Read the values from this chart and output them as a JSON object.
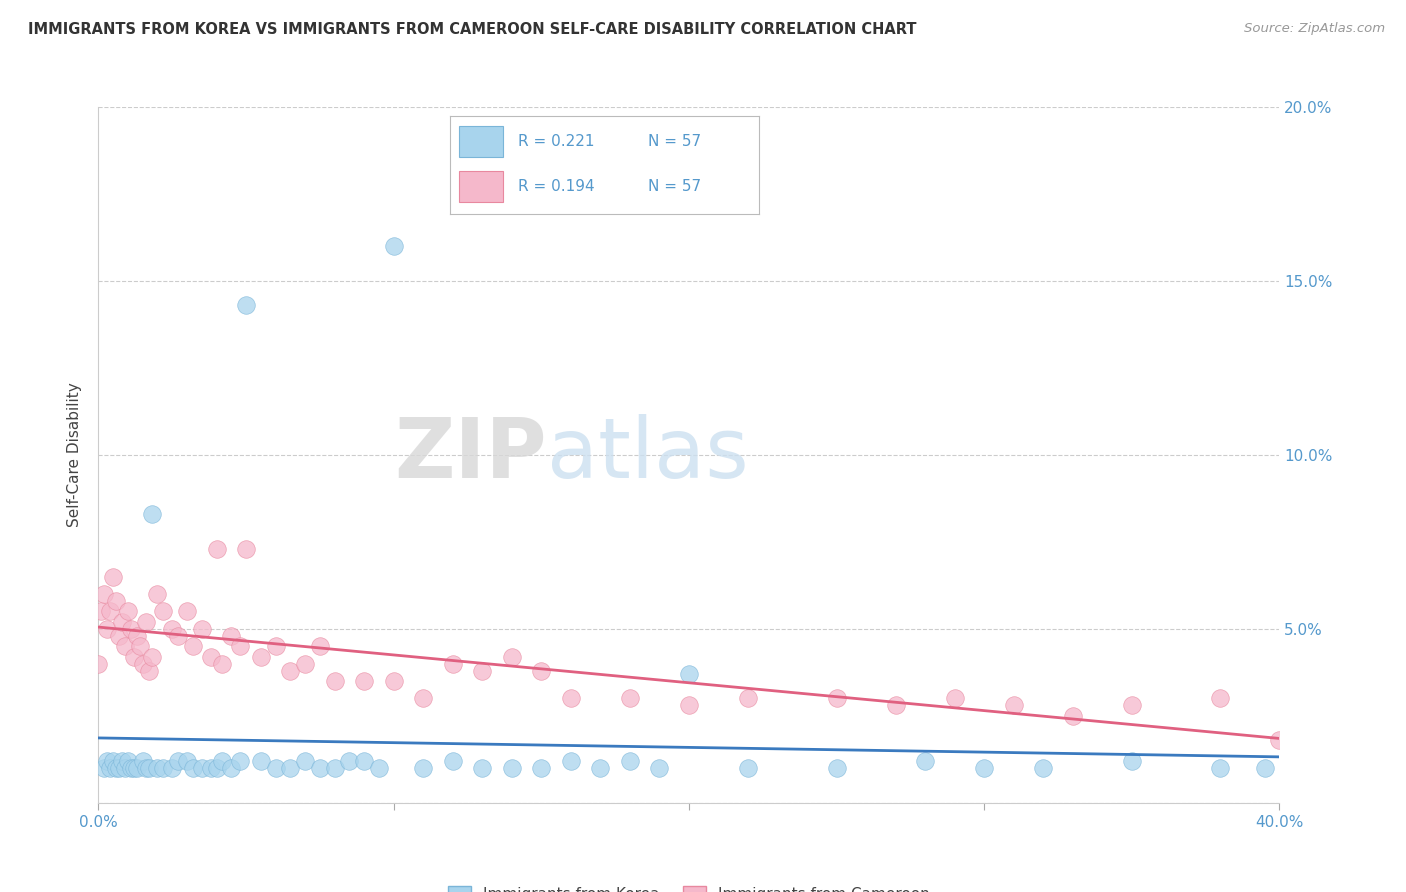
{
  "title": "IMMIGRANTS FROM KOREA VS IMMIGRANTS FROM CAMEROON SELF-CARE DISABILITY CORRELATION CHART",
  "source": "Source: ZipAtlas.com",
  "ylabel_label": "Self-Care Disability",
  "xlim": [
    0.0,
    0.4
  ],
  "ylim": [
    0.0,
    0.2
  ],
  "xticks": [
    0.0,
    0.1,
    0.2,
    0.3,
    0.4
  ],
  "yticks": [
    0.0,
    0.05,
    0.1,
    0.15,
    0.2
  ],
  "xticklabels": [
    "0.0%",
    "",
    "",
    "",
    "40.0%"
  ],
  "yticklabels": [
    "",
    "5.0%",
    "10.0%",
    "15.0%",
    "20.0%"
  ],
  "korea_color": "#a8d4ed",
  "cameroon_color": "#f5b8cb",
  "korea_edge_color": "#7ab5d8",
  "cameroon_edge_color": "#e8889f",
  "korea_line_color": "#3a7abf",
  "cameroon_line_color": "#e06080",
  "legend_R_korea": "0.221",
  "legend_N_korea": "57",
  "legend_R_cameroon": "0.194",
  "legend_N_cameroon": "57",
  "watermark_ZIP": "ZIP",
  "watermark_atlas": "atlas",
  "legend_label_korea": "Immigrants from Korea",
  "legend_label_cameroon": "Immigrants from Cameroon",
  "korea_x": [
    0.002,
    0.003,
    0.004,
    0.005,
    0.006,
    0.007,
    0.008,
    0.009,
    0.01,
    0.011,
    0.012,
    0.013,
    0.015,
    0.016,
    0.017,
    0.018,
    0.02,
    0.022,
    0.025,
    0.027,
    0.03,
    0.032,
    0.035,
    0.038,
    0.04,
    0.042,
    0.045,
    0.048,
    0.05,
    0.055,
    0.06,
    0.065,
    0.07,
    0.075,
    0.08,
    0.085,
    0.09,
    0.095,
    0.1,
    0.11,
    0.12,
    0.13,
    0.14,
    0.15,
    0.16,
    0.17,
    0.18,
    0.19,
    0.2,
    0.22,
    0.25,
    0.28,
    0.3,
    0.32,
    0.35,
    0.38,
    0.395
  ],
  "korea_y": [
    0.01,
    0.012,
    0.01,
    0.012,
    0.01,
    0.01,
    0.012,
    0.01,
    0.012,
    0.01,
    0.01,
    0.01,
    0.012,
    0.01,
    0.01,
    0.083,
    0.01,
    0.01,
    0.01,
    0.012,
    0.012,
    0.01,
    0.01,
    0.01,
    0.01,
    0.012,
    0.01,
    0.012,
    0.143,
    0.012,
    0.01,
    0.01,
    0.012,
    0.01,
    0.01,
    0.012,
    0.012,
    0.01,
    0.16,
    0.01,
    0.012,
    0.01,
    0.01,
    0.01,
    0.012,
    0.01,
    0.012,
    0.01,
    0.037,
    0.01,
    0.01,
    0.012,
    0.01,
    0.01,
    0.012,
    0.01,
    0.01
  ],
  "cameroon_x": [
    0.0,
    0.001,
    0.002,
    0.003,
    0.004,
    0.005,
    0.006,
    0.007,
    0.008,
    0.009,
    0.01,
    0.011,
    0.012,
    0.013,
    0.014,
    0.015,
    0.016,
    0.017,
    0.018,
    0.02,
    0.022,
    0.025,
    0.027,
    0.03,
    0.032,
    0.035,
    0.038,
    0.04,
    0.042,
    0.045,
    0.048,
    0.05,
    0.055,
    0.06,
    0.065,
    0.07,
    0.075,
    0.08,
    0.09,
    0.1,
    0.11,
    0.12,
    0.13,
    0.14,
    0.15,
    0.16,
    0.18,
    0.2,
    0.22,
    0.25,
    0.27,
    0.29,
    0.31,
    0.33,
    0.35,
    0.38,
    0.4
  ],
  "cameroon_y": [
    0.04,
    0.055,
    0.06,
    0.05,
    0.055,
    0.065,
    0.058,
    0.048,
    0.052,
    0.045,
    0.055,
    0.05,
    0.042,
    0.048,
    0.045,
    0.04,
    0.052,
    0.038,
    0.042,
    0.06,
    0.055,
    0.05,
    0.048,
    0.055,
    0.045,
    0.05,
    0.042,
    0.073,
    0.04,
    0.048,
    0.045,
    0.073,
    0.042,
    0.045,
    0.038,
    0.04,
    0.045,
    0.035,
    0.035,
    0.035,
    0.03,
    0.04,
    0.038,
    0.042,
    0.038,
    0.03,
    0.03,
    0.028,
    0.03,
    0.03,
    0.028,
    0.03,
    0.028,
    0.025,
    0.028,
    0.03,
    0.018
  ]
}
